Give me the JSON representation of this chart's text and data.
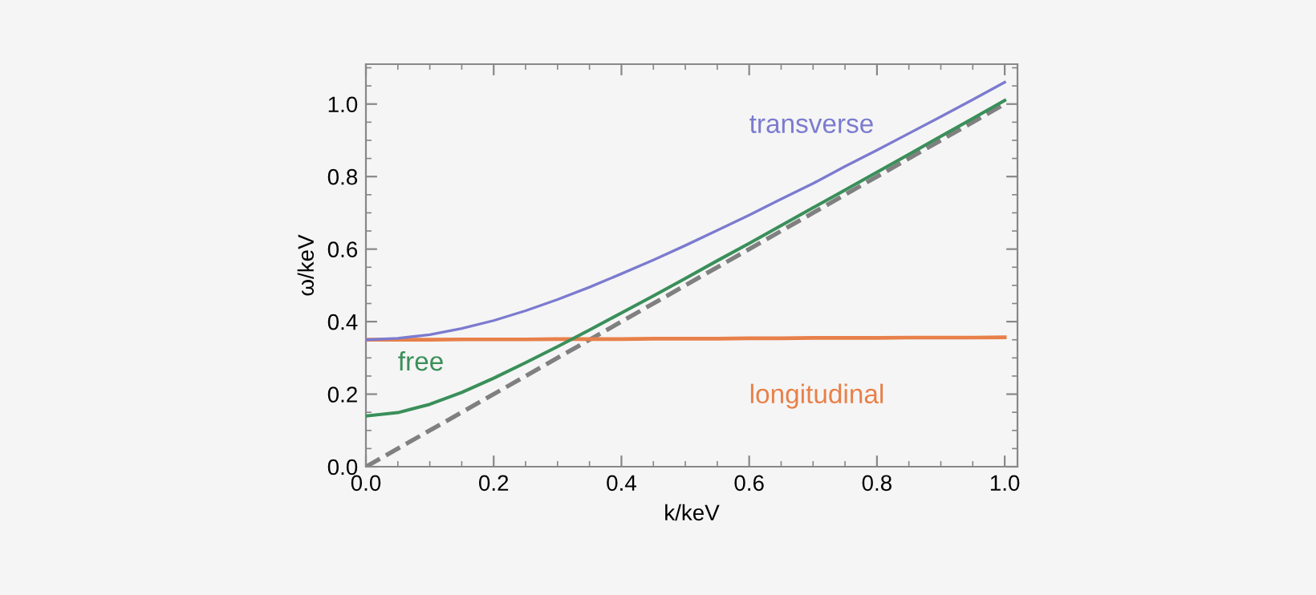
{
  "chart_data": {
    "type": "line",
    "xlabel": "k/keV",
    "ylabel": "ω/keV",
    "x": [
      0,
      0.05,
      0.1,
      0.15,
      0.2,
      0.25,
      0.3,
      0.35,
      0.4,
      0.45,
      0.5,
      0.55,
      0.6,
      0.65,
      0.7,
      0.75,
      0.8,
      0.85,
      0.9,
      0.95,
      1.0
    ],
    "series": [
      {
        "name": "transverse",
        "color": "#7b7bd0",
        "values": [
          0.35,
          0.354,
          0.364,
          0.381,
          0.403,
          0.43,
          0.461,
          0.495,
          0.532,
          0.57,
          0.61,
          0.652,
          0.694,
          0.738,
          0.781,
          0.828,
          0.873,
          0.919,
          0.965,
          1.012,
          1.06
        ]
      },
      {
        "name": "free",
        "color": "#3a8f5a",
        "values": [
          0.14,
          0.149,
          0.172,
          0.205,
          0.244,
          0.287,
          0.331,
          0.377,
          0.424,
          0.471,
          0.519,
          0.568,
          0.616,
          0.665,
          0.714,
          0.763,
          0.812,
          0.861,
          0.911,
          0.96,
          1.01
        ]
      },
      {
        "name": "longitudinal",
        "color": "#e8804a",
        "values": [
          0.35,
          0.35,
          0.35,
          0.351,
          0.351,
          0.351,
          0.352,
          0.352,
          0.352,
          0.353,
          0.353,
          0.353,
          0.354,
          0.354,
          0.355,
          0.355,
          0.355,
          0.356,
          0.356,
          0.356,
          0.357
        ]
      },
      {
        "color": "#808080",
        "line_style": "dashed",
        "x": [
          0,
          1.0
        ],
        "values": [
          0,
          1.0
        ]
      }
    ],
    "xlim": [
      0,
      1.02
    ],
    "ylim": [
      0,
      1.11
    ],
    "xticks": [
      {
        "value": 0,
        "label": "0.0"
      },
      0.2,
      0.4,
      0.6,
      0.8,
      {
        "value": 1,
        "label": "1.0"
      }
    ],
    "yticks": [
      {
        "value": 0,
        "label": "0.0"
      },
      0.2,
      0.4,
      0.6,
      0.8,
      {
        "value": 1,
        "label": "1.0"
      }
    ],
    "grid": false,
    "legend": false,
    "marker": "none",
    "line_style": "solid"
  }
}
